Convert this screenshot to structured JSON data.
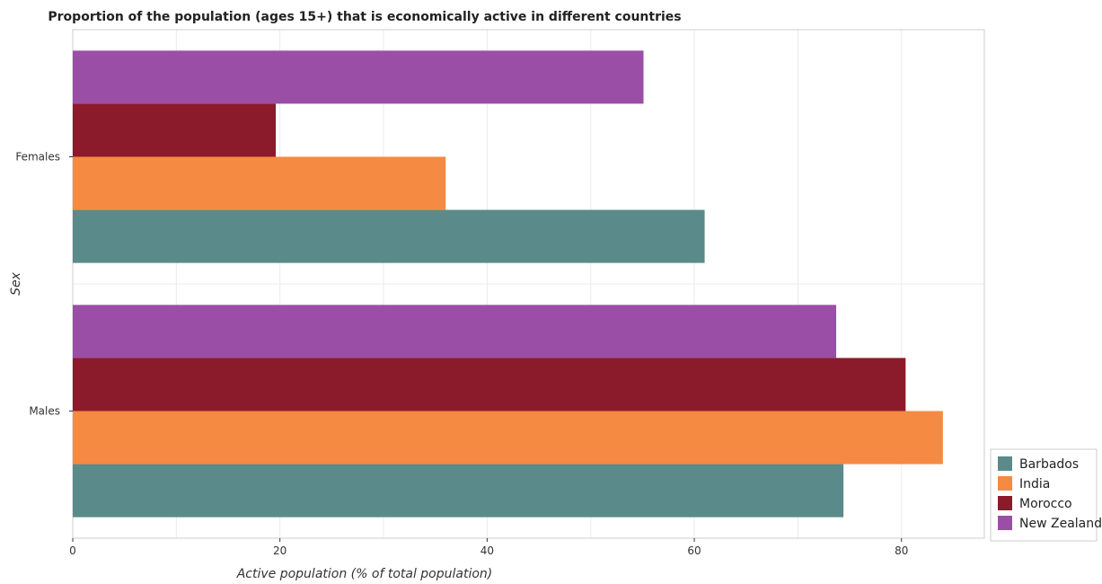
{
  "chart_data": {
    "type": "bar",
    "orientation": "horizontal",
    "title": "Proportion of the population (ages 15+) that is economically active in different countries",
    "xlabel": "Active population (% of total population)",
    "ylabel": "Sex",
    "categories": [
      "Females",
      "Males"
    ],
    "series": [
      {
        "name": "Barbados",
        "color": "#5b8a8a",
        "values": [
          61.0,
          74.4
        ]
      },
      {
        "name": "India",
        "color": "#f58a42",
        "values": [
          36.0,
          84.0
        ]
      },
      {
        "name": "Morocco",
        "color": "#8b1a2b",
        "values": [
          19.6,
          80.4
        ]
      },
      {
        "name": "New Zealand",
        "color": "#9b4ea6",
        "values": [
          55.1,
          73.7
        ]
      }
    ],
    "xlim": [
      0,
      88
    ],
    "xticks": [
      0,
      20,
      40,
      60,
      80
    ],
    "grid": true,
    "legend": "bottom-right"
  }
}
